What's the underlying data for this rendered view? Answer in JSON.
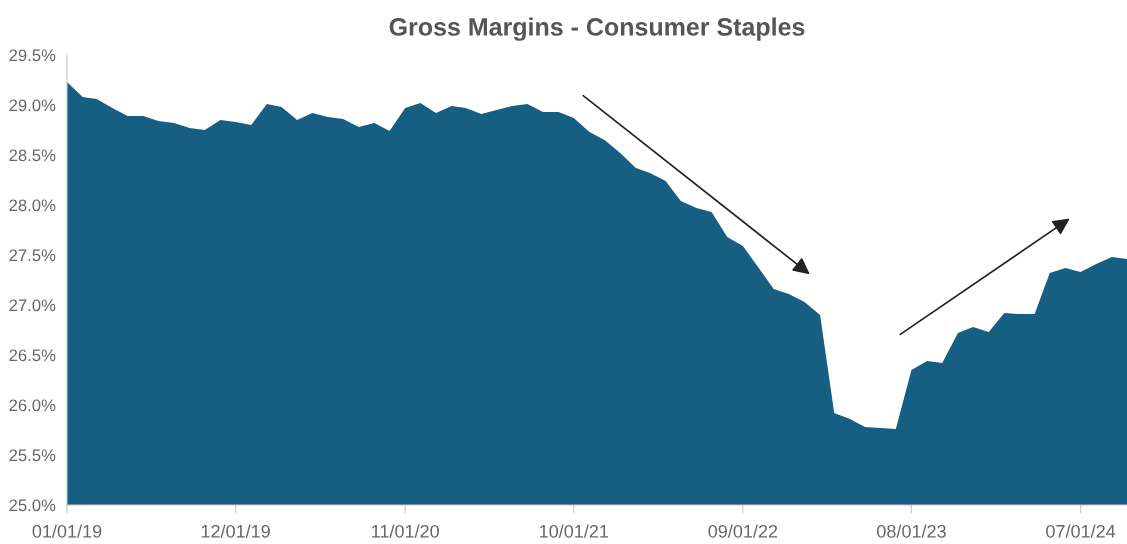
{
  "chart_data": {
    "type": "area",
    "title": "Gross Margins - Consumer Staples",
    "x": [
      "2019-01",
      "2019-02",
      "2019-03",
      "2019-04",
      "2019-05",
      "2019-06",
      "2019-07",
      "2019-08",
      "2019-09",
      "2019-10",
      "2019-11",
      "2019-12",
      "2020-01",
      "2020-02",
      "2020-03",
      "2020-04",
      "2020-05",
      "2020-06",
      "2020-07",
      "2020-08",
      "2020-09",
      "2020-10",
      "2020-11",
      "2020-12",
      "2021-01",
      "2021-02",
      "2021-03",
      "2021-04",
      "2021-05",
      "2021-06",
      "2021-07",
      "2021-08",
      "2021-09",
      "2021-10",
      "2021-11",
      "2021-12",
      "2022-01",
      "2022-02",
      "2022-03",
      "2022-04",
      "2022-05",
      "2022-06",
      "2022-07",
      "2022-08",
      "2022-09",
      "2022-10",
      "2022-11",
      "2022-12",
      "2023-01",
      "2023-02",
      "2023-03",
      "2023-04",
      "2023-05",
      "2023-06",
      "2023-07",
      "2023-08",
      "2023-09",
      "2023-10",
      "2023-11",
      "2023-12",
      "2024-01",
      "2024-02",
      "2024-03",
      "2024-04",
      "2024-05",
      "2024-06",
      "2024-07",
      "2024-08",
      "2024-09",
      "2024-10"
    ],
    "series": [
      {
        "color": "#175f82",
        "values": [
          29.23,
          29.08,
          29.06,
          28.97,
          28.89,
          28.89,
          28.84,
          28.82,
          28.77,
          28.75,
          28.85,
          28.83,
          28.8,
          29.01,
          28.98,
          28.85,
          28.92,
          28.88,
          28.86,
          28.78,
          28.82,
          28.74,
          28.97,
          29.02,
          28.92,
          28.99,
          28.97,
          28.91,
          28.95,
          28.99,
          29.01,
          28.93,
          28.93,
          28.87,
          28.73,
          28.65,
          28.52,
          28.37,
          28.32,
          28.24,
          28.04,
          27.97,
          27.93,
          27.68,
          27.59,
          27.38,
          27.16,
          27.11,
          27.03,
          26.9,
          25.92,
          25.86,
          25.78,
          25.77,
          25.76,
          26.35,
          26.44,
          26.42,
          26.72,
          26.78,
          26.73,
          26.92,
          26.91,
          26.91,
          27.32,
          27.37,
          27.33,
          27.41,
          27.48,
          27.46
        ]
      }
    ],
    "xlim": [
      "2019-01",
      "2024-10"
    ],
    "xticks": [
      {
        "value": "2019-01-01",
        "label": "01/01/19"
      },
      {
        "value": "2019-12-01",
        "label": "12/01/19"
      },
      {
        "value": "2020-11-01",
        "label": "11/01/20"
      },
      {
        "value": "2021-10-01",
        "label": "10/01/21"
      },
      {
        "value": "2022-09-01",
        "label": "09/01/22"
      },
      {
        "value": "2023-08-01",
        "label": "08/01/23"
      },
      {
        "value": "2024-07-01",
        "label": "07/01/24"
      }
    ],
    "ylim": [
      25,
      29.5
    ],
    "yticks": [
      {
        "value": 25,
        "label": "25.0%"
      },
      {
        "value": 25.5,
        "label": "25.5%"
      },
      {
        "value": 26,
        "label": "26.0%"
      },
      {
        "value": 26.5,
        "label": "26.5%"
      },
      {
        "value": 27,
        "label": "27.0%"
      },
      {
        "value": 27.5,
        "label": "27.5%"
      },
      {
        "value": 28,
        "label": "28.0%"
      },
      {
        "value": 28.5,
        "label": "28.5%"
      },
      {
        "value": 29,
        "label": "29.0%"
      },
      {
        "value": 29.5,
        "label": "29.5%"
      }
    ],
    "grid": false
  }
}
